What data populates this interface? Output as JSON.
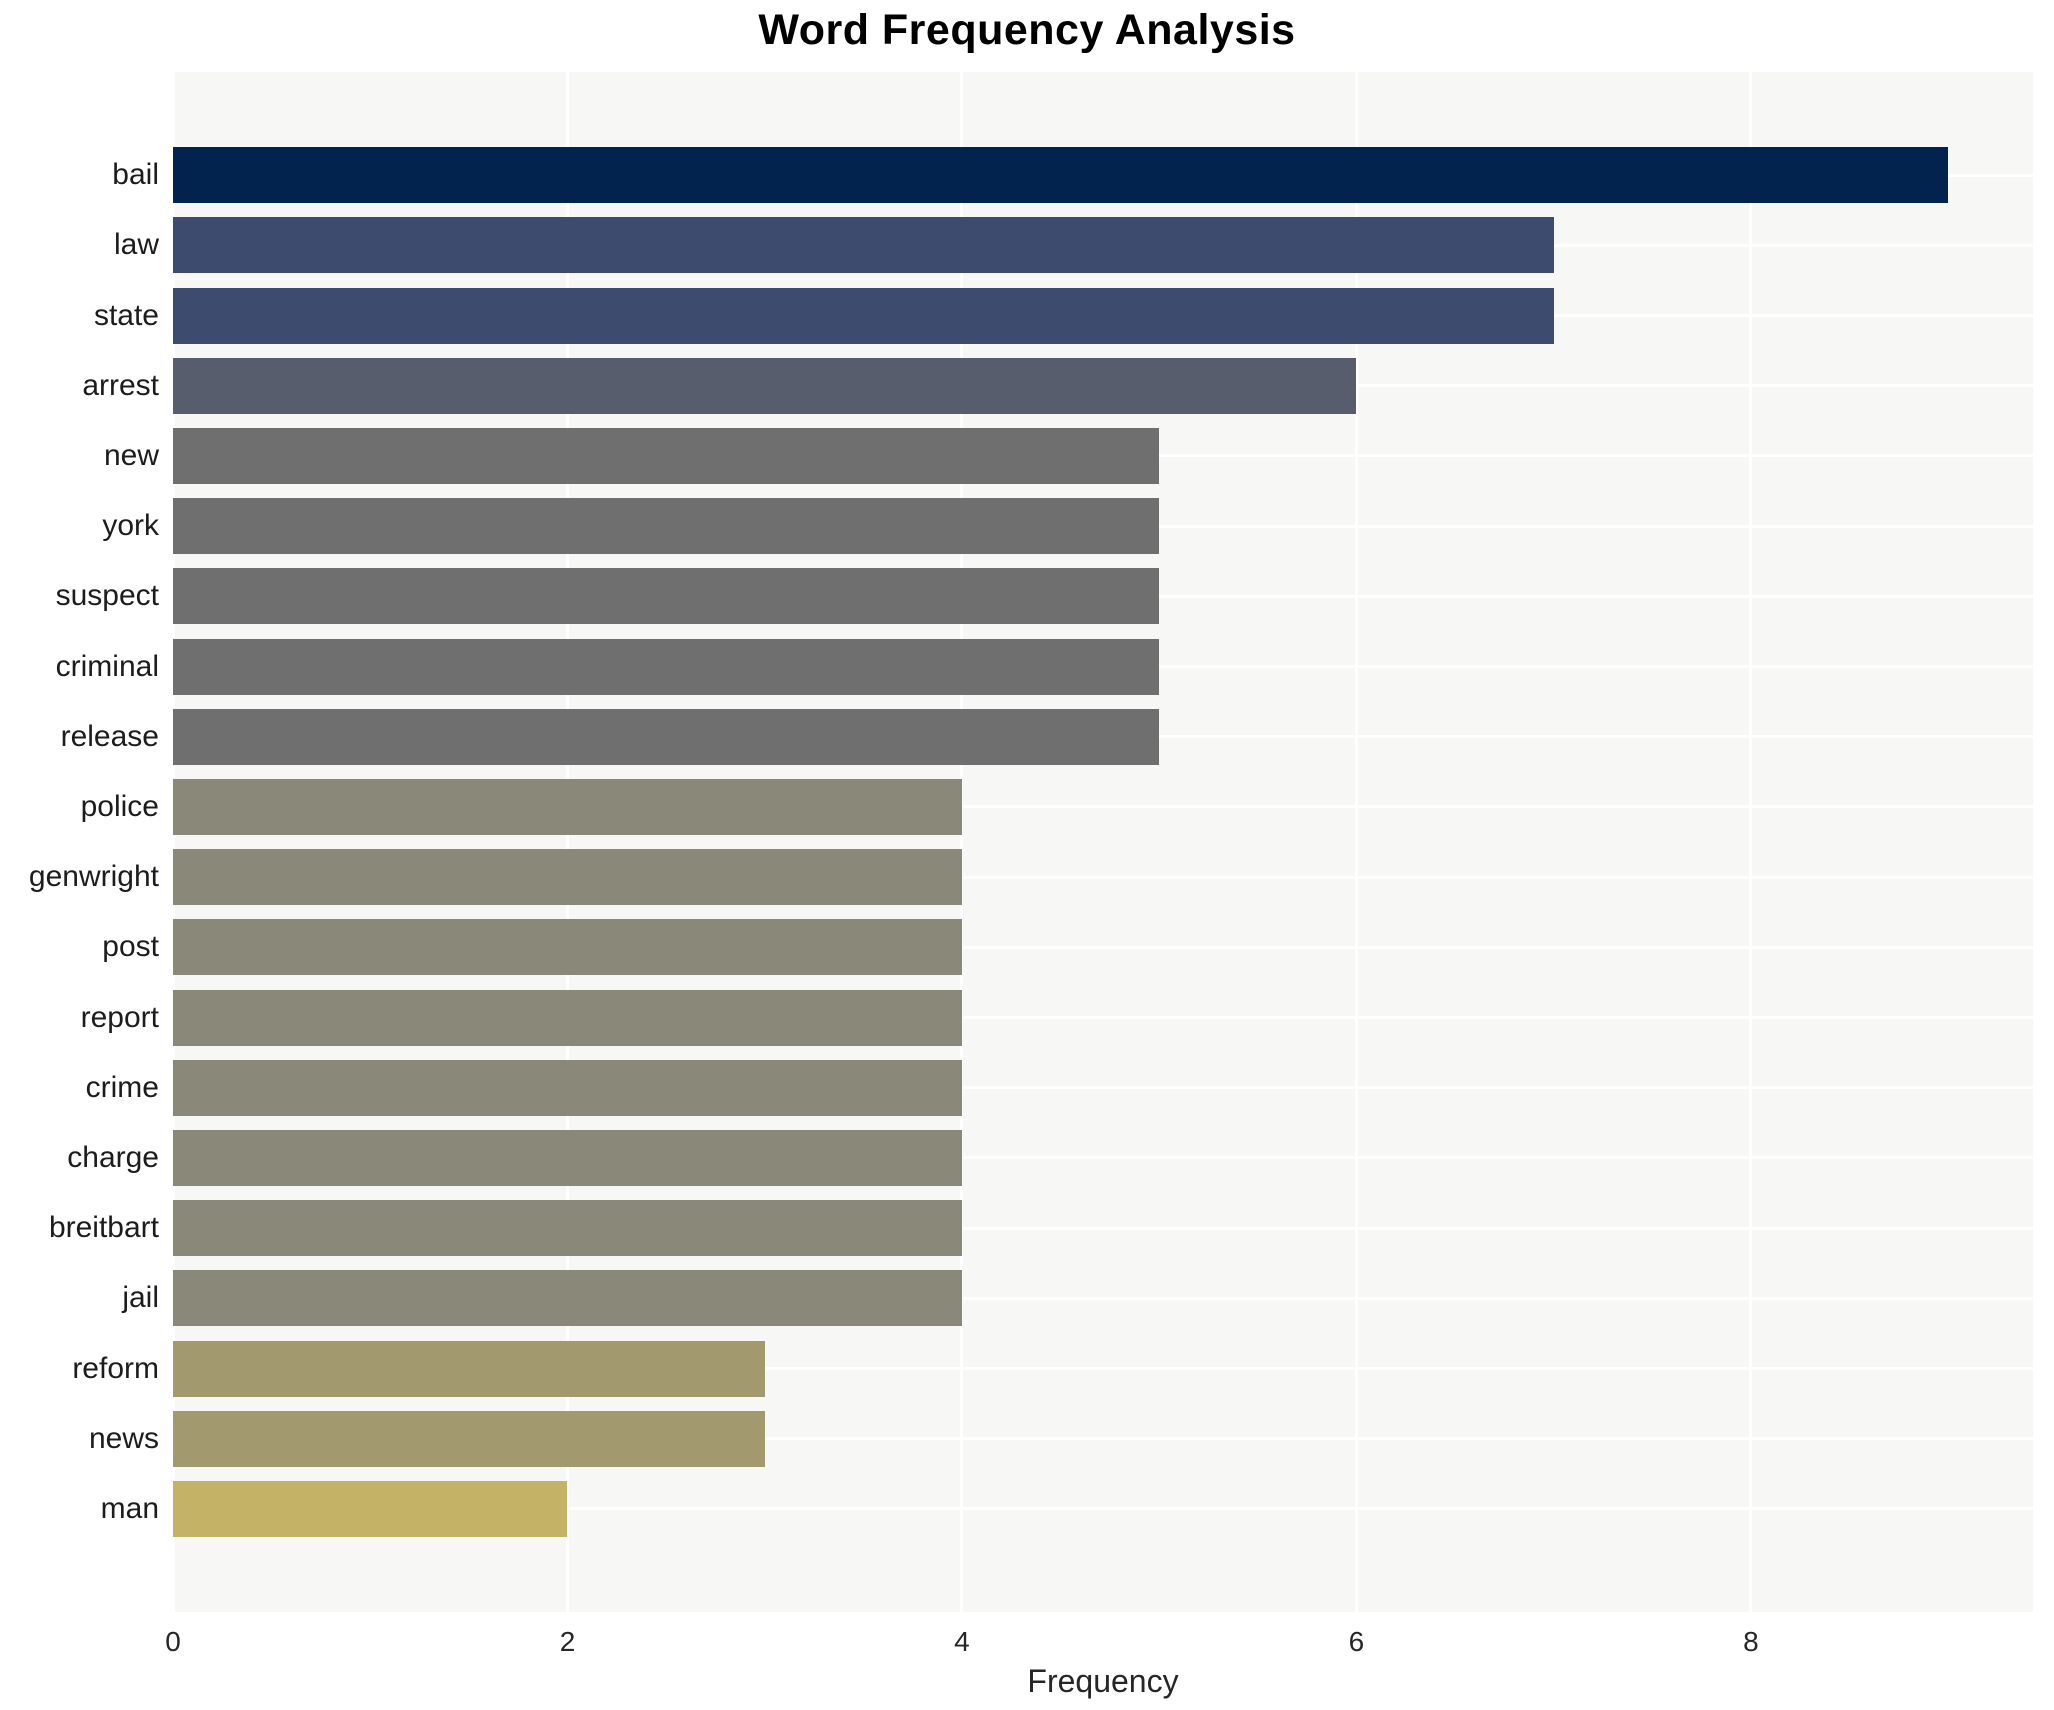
{
  "chart_data": {
    "type": "bar",
    "orientation": "horizontal",
    "title": "Word Frequency Analysis",
    "xlabel": "Frequency",
    "ylabel": "",
    "xlim": [
      0,
      9.43
    ],
    "xticks": [
      "0",
      "2",
      "4",
      "6",
      "8"
    ],
    "xtick_values": [
      0,
      2,
      4,
      6,
      8
    ],
    "grid": true,
    "legend": "none",
    "plot_background": "#f7f7f5",
    "grid_color": "#ffffff",
    "categories": [
      "bail",
      "law",
      "state",
      "arrest",
      "new",
      "york",
      "suspect",
      "criminal",
      "release",
      "police",
      "genwright",
      "post",
      "report",
      "crime",
      "charge",
      "breitbart",
      "jail",
      "reform",
      "news",
      "man"
    ],
    "values": [
      9,
      7,
      7,
      6,
      5,
      5,
      5,
      5,
      5,
      4,
      4,
      4,
      4,
      4,
      4,
      4,
      4,
      3,
      3,
      2
    ],
    "bar_colors": [
      "#02234e",
      "#3d4c6e",
      "#3d4c6e",
      "#575d6d",
      "#6f6f70",
      "#6f6f70",
      "#6f6f70",
      "#6f6f70",
      "#6f6f70",
      "#8a8878",
      "#8a8878",
      "#8a8878",
      "#8a8878",
      "#8a8878",
      "#8a8878",
      "#8a8878",
      "#8a8878",
      "#a29a6e",
      "#a29a6e",
      "#c4b267"
    ],
    "title_color": "#000000",
    "label_color": "#1c1c1c",
    "tick_color": "#262626"
  }
}
